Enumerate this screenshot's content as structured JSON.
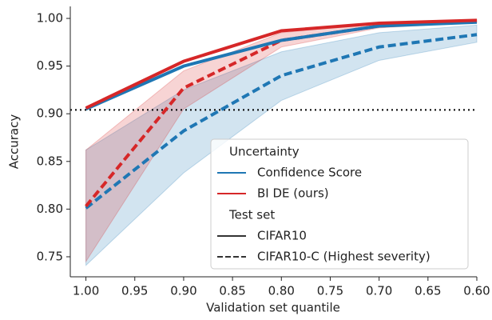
{
  "chart_data": {
    "type": "line",
    "xlabel": "Validation set quantile",
    "ylabel": "Accuracy",
    "x": [
      1.0,
      0.9,
      0.8,
      0.7,
      0.6
    ],
    "xlim": [
      1.016,
      0.6
    ],
    "xticks": [
      {
        "value": 1.0,
        "label": "1.00"
      },
      0.95,
      {
        "value": 0.9,
        "label": "0.90"
      },
      0.85,
      {
        "value": 0.8,
        "label": "0.80"
      },
      0.75,
      {
        "value": 0.7,
        "label": "0.70"
      },
      0.65,
      {
        "value": 0.6,
        "label": "0.60"
      }
    ],
    "ylim": [
      0.729,
      1.0126
    ],
    "yticks": [
      0.75,
      {
        "value": 0.8,
        "label": "0.80"
      },
      0.85,
      {
        "value": 0.9,
        "label": "0.90"
      },
      0.95,
      {
        "value": 1.0,
        "label": "1.00"
      }
    ],
    "reference_line": 0.904,
    "legend": {
      "hue_title": "Uncertainty",
      "style_title": "Test set",
      "hues": [
        {
          "name": "Confidence Score",
          "color": "#1f77b4"
        },
        {
          "name": "BI DE (ours)",
          "color": "#d62728"
        }
      ],
      "styles": [
        {
          "name": "CIFAR10",
          "dash": "none"
        },
        {
          "name": "CIFAR10-C (Highest severity)",
          "dash": "10 5"
        }
      ]
    },
    "series": [
      {
        "hue": 0,
        "style": 1,
        "values": [
          0.801,
          0.882,
          0.94,
          0.97,
          0.983
        ],
        "lower": [
          0.741,
          0.838,
          0.914,
          0.956,
          0.975
        ],
        "upper": [
          0.862,
          0.925,
          0.965,
          0.985,
          0.993
        ]
      },
      {
        "hue": 1,
        "style": 1,
        "values": [
          0.803,
          0.927,
          0.977,
          0.992,
          0.997
        ],
        "lower": [
          0.745,
          0.905,
          0.97,
          0.99,
          0.996
        ],
        "upper": [
          0.862,
          0.945,
          0.985,
          0.995,
          0.999
        ]
      },
      {
        "hue": 0,
        "style": 0,
        "values": [
          0.905,
          0.95,
          0.977,
          0.992,
          0.996
        ]
      },
      {
        "hue": 1,
        "style": 0,
        "values": [
          0.906,
          0.955,
          0.987,
          0.995,
          0.998
        ]
      }
    ]
  }
}
